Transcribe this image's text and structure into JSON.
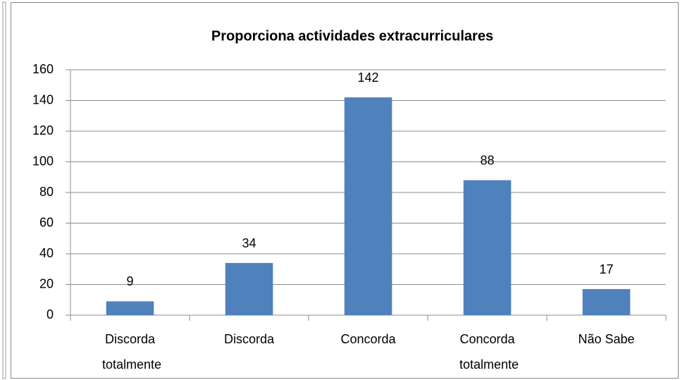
{
  "chart_data": {
    "type": "bar",
    "title": "Proporciona actividades extracurriculares",
    "categories": [
      "Discorda totalmente",
      "Discorda",
      "Concorda",
      "Concorda totalmente",
      "Não Sabe"
    ],
    "values": [
      9,
      34,
      142,
      88,
      17
    ],
    "color": "#4f81bd",
    "ylim": [
      0,
      160
    ],
    "yticks": [
      0,
      20,
      40,
      60,
      80,
      100,
      120,
      140,
      160
    ],
    "grid": true
  }
}
